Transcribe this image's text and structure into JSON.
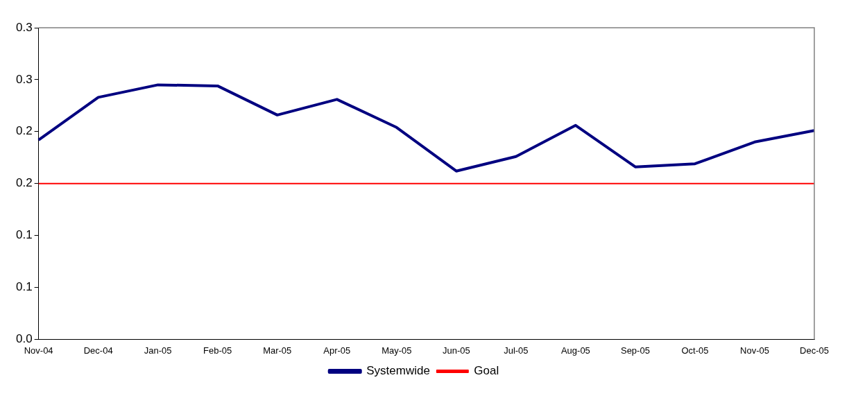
{
  "chart_data": {
    "type": "line",
    "categories": [
      "Nov-04",
      "Dec-04",
      "Jan-05",
      "Feb-05",
      "Mar-05",
      "Apr-05",
      "May-05",
      "Jun-05",
      "Jul-05",
      "Aug-05",
      "Sep-05",
      "Oct-05",
      "Nov-05",
      "Dec-05"
    ],
    "series": [
      {
        "name": "Systemwide",
        "color": "#000080",
        "values": [
          0.192,
          0.233,
          0.245,
          0.244,
          0.216,
          0.231,
          0.204,
          0.162,
          0.176,
          0.206,
          0.166,
          0.169,
          0.19,
          0.201
        ]
      },
      {
        "name": "Goal",
        "color": "#ff0000",
        "values": [
          0.15,
          0.15,
          0.15,
          0.15,
          0.15,
          0.15,
          0.15,
          0.15,
          0.15,
          0.15,
          0.15,
          0.15,
          0.15,
          0.15
        ]
      }
    ],
    "ylim": [
      0,
      0.3
    ],
    "yticks": [
      {
        "value": 0,
        "label": "0.0"
      },
      {
        "value": 0.05,
        "label": "0.1"
      },
      {
        "value": 0.1,
        "label": "0.1"
      },
      {
        "value": 0.15,
        "label": "0.2"
      },
      {
        "value": 0.2,
        "label": "0.2"
      },
      {
        "value": 0.25,
        "label": "0.3"
      },
      {
        "value": 0.3,
        "label": "0.3"
      }
    ],
    "grid": false,
    "legend": "bottom"
  }
}
